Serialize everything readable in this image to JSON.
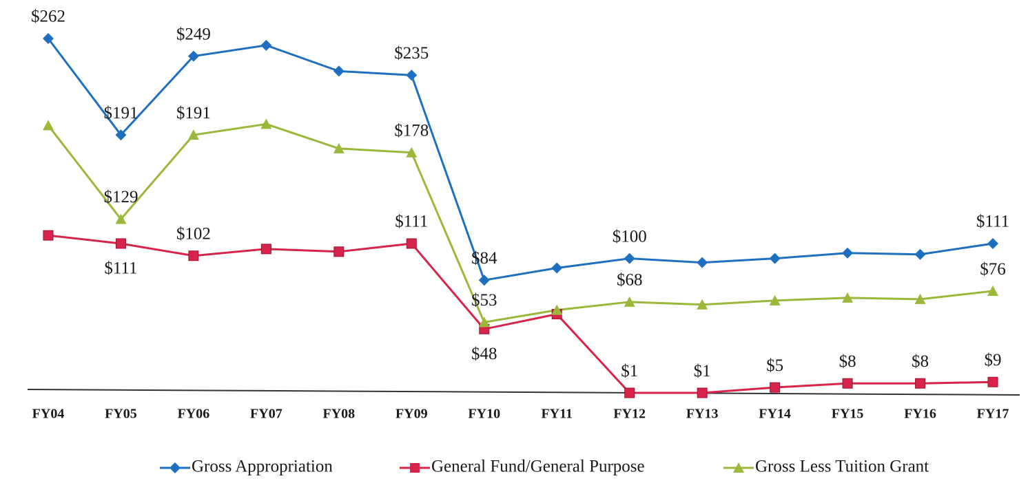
{
  "chart_data": {
    "type": "line",
    "categories": [
      "FY04",
      "FY05",
      "FY06",
      "FY07",
      "FY08",
      "FY09",
      "FY10",
      "FY11",
      "FY12",
      "FY13",
      "FY14",
      "FY15",
      "FY16",
      "FY17"
    ],
    "series": [
      {
        "name": "Gross Appropriation",
        "color": "#1f6fc0",
        "marker": "diamond",
        "values": [
          262,
          191,
          249,
          257,
          238,
          235,
          84,
          93,
          100,
          97,
          100,
          104,
          103,
          111
        ],
        "value_labels": [
          "$262",
          "$191",
          "$249",
          null,
          null,
          "$235",
          "$84",
          null,
          "$100",
          null,
          null,
          null,
          null,
          "$111"
        ]
      },
      {
        "name": "General Fund/General Purpose",
        "color": "#d6244a",
        "marker": "square",
        "values": [
          117,
          111,
          102,
          107,
          105,
          111,
          48,
          59,
          1,
          1,
          5,
          8,
          8,
          9
        ],
        "value_labels": [
          null,
          "$111",
          "$102",
          null,
          null,
          "$111",
          "$48",
          null,
          "$1",
          "$1",
          "$5",
          "$8",
          "$8",
          "$9"
        ]
      },
      {
        "name": "Gross Less Tuition Grant",
        "color": "#9cb83a",
        "marker": "triangle",
        "values": [
          198,
          129,
          191,
          199,
          181,
          178,
          53,
          62,
          68,
          66,
          69,
          71,
          70,
          76
        ],
        "value_labels": [
          null,
          "$129",
          "$191",
          null,
          null,
          "$178",
          "$53",
          null,
          "$68",
          null,
          null,
          null,
          null,
          "$76"
        ]
      }
    ]
  }
}
